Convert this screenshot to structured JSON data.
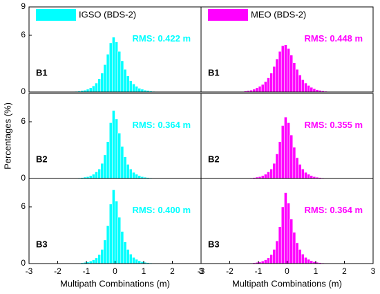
{
  "chart_data": [
    {
      "type": "histogram",
      "series": [
        {
          "name": "IGSO (BDS-2)",
          "color": "#00ffff",
          "values": [
            0.05,
            0.07,
            0.1,
            0.15,
            0.2,
            0.3,
            0.45,
            0.65,
            0.95,
            1.4,
            2.0,
            2.9,
            4.0,
            5.2,
            5.8,
            5.3,
            4.3,
            3.3,
            2.4,
            1.7,
            1.2,
            0.85,
            0.6,
            0.4,
            0.3,
            0.2,
            0.15,
            0.1,
            0.07,
            0.05
          ]
        }
      ],
      "bins": [
        -1.5,
        -1.4,
        -1.3,
        -1.2,
        -1.1,
        -1.0,
        -0.9,
        -0.8,
        -0.7,
        -0.6,
        -0.5,
        -0.4,
        -0.3,
        -0.2,
        -0.1,
        0,
        0.1,
        0.2,
        0.3,
        0.4,
        0.5,
        0.6,
        0.7,
        0.8,
        0.9,
        1.0,
        1.1,
        1.2,
        1.3,
        1.4,
        1.5
      ],
      "label": "B1",
      "annotation": "RMS: 0.422 m",
      "xlim": [
        -3,
        3
      ],
      "ylim": [
        0,
        9
      ],
      "yticks": [
        0,
        6,
        9
      ]
    },
    {
      "type": "histogram",
      "series": [
        {
          "name": "MEO (BDS-2)",
          "color": "#ff00ff",
          "values": [
            0.1,
            0.15,
            0.2,
            0.3,
            0.45,
            0.6,
            0.8,
            1.1,
            1.5,
            2.0,
            2.7,
            3.5,
            4.3,
            4.9,
            5.0,
            4.6,
            3.9,
            3.1,
            2.4,
            1.8,
            1.3,
            0.95,
            0.7,
            0.5,
            0.35,
            0.25,
            0.18,
            0.12,
            0.08,
            0.05
          ]
        }
      ],
      "bins": [
        -1.5,
        -1.4,
        -1.3,
        -1.2,
        -1.1,
        -1.0,
        -0.9,
        -0.8,
        -0.7,
        -0.6,
        -0.5,
        -0.4,
        -0.3,
        -0.2,
        -0.1,
        0,
        0.1,
        0.2,
        0.3,
        0.4,
        0.5,
        0.6,
        0.7,
        0.8,
        0.9,
        1.0,
        1.1,
        1.2,
        1.3,
        1.4,
        1.5
      ],
      "label": "B1",
      "annotation": "RMS: 0.448 m",
      "xlim": [
        -3,
        3
      ],
      "ylim": [
        0,
        9
      ]
    },
    {
      "type": "histogram",
      "color": "#00ffff",
      "values": [
        0.03,
        0.05,
        0.07,
        0.1,
        0.15,
        0.2,
        0.3,
        0.45,
        0.7,
        1.0,
        1.6,
        2.5,
        3.9,
        5.9,
        7.2,
        6.3,
        4.8,
        3.4,
        2.3,
        1.5,
        1.0,
        0.65,
        0.45,
        0.3,
        0.2,
        0.14,
        0.1,
        0.07,
        0.05,
        0.03
      ],
      "bins": [
        -1.5,
        -1.4,
        -1.3,
        -1.2,
        -1.1,
        -1.0,
        -0.9,
        -0.8,
        -0.7,
        -0.6,
        -0.5,
        -0.4,
        -0.3,
        -0.2,
        -0.1,
        0,
        0.1,
        0.2,
        0.3,
        0.4,
        0.5,
        0.6,
        0.7,
        0.8,
        0.9,
        1.0,
        1.1,
        1.2,
        1.3,
        1.4,
        1.5
      ],
      "label": "B2",
      "annotation": "RMS: 0.364 m",
      "y_label": "Percentages (%)",
      "xlim": [
        -3,
        3
      ],
      "ylim": [
        0,
        9
      ],
      "yticks": [
        0,
        6
      ]
    },
    {
      "type": "histogram",
      "color": "#ff00ff",
      "values": [
        0.03,
        0.05,
        0.07,
        0.1,
        0.15,
        0.2,
        0.3,
        0.45,
        0.7,
        1.0,
        1.6,
        2.6,
        3.9,
        5.6,
        6.5,
        5.9,
        4.6,
        3.3,
        2.2,
        1.5,
        1.0,
        0.65,
        0.45,
        0.3,
        0.2,
        0.14,
        0.1,
        0.07,
        0.05,
        0.03
      ],
      "bins": [
        -1.5,
        -1.4,
        -1.3,
        -1.2,
        -1.1,
        -1.0,
        -0.9,
        -0.8,
        -0.7,
        -0.6,
        -0.5,
        -0.4,
        -0.3,
        -0.2,
        -0.1,
        0,
        0.1,
        0.2,
        0.3,
        0.4,
        0.5,
        0.6,
        0.7,
        0.8,
        0.9,
        1.0,
        1.1,
        1.2,
        1.3,
        1.4,
        1.5
      ],
      "label": "B2",
      "annotation": "RMS: 0.355 m",
      "xlim": [
        -3,
        3
      ],
      "ylim": [
        0,
        9
      ]
    },
    {
      "type": "histogram",
      "color": "#00ffff",
      "values": [
        0.03,
        0.04,
        0.06,
        0.09,
        0.13,
        0.18,
        0.27,
        0.4,
        0.6,
        0.95,
        1.5,
        2.5,
        4.0,
        6.3,
        7.8,
        6.6,
        4.9,
        3.4,
        2.3,
        1.5,
        1.0,
        0.65,
        0.45,
        0.3,
        0.2,
        0.14,
        0.1,
        0.07,
        0.05,
        0.03
      ],
      "bins": [
        -1.5,
        -1.4,
        -1.3,
        -1.2,
        -1.1,
        -1.0,
        -0.9,
        -0.8,
        -0.7,
        -0.6,
        -0.5,
        -0.4,
        -0.3,
        -0.2,
        -0.1,
        0,
        0.1,
        0.2,
        0.3,
        0.4,
        0.5,
        0.6,
        0.7,
        0.8,
        0.9,
        1.0,
        1.1,
        1.2,
        1.3,
        1.4,
        1.5
      ],
      "label": "B3",
      "annotation": "RMS: 0.400 m",
      "x_label": "Multipath Combinations (m)",
      "xlim": [
        -3,
        3
      ],
      "xticks": [
        -3,
        -2,
        -1,
        0,
        1,
        2,
        3
      ],
      "ylim": [
        0,
        9
      ],
      "yticks": [
        0,
        6
      ]
    },
    {
      "type": "histogram",
      "color": "#ff00ff",
      "values": [
        0.03,
        0.04,
        0.06,
        0.09,
        0.13,
        0.18,
        0.27,
        0.4,
        0.6,
        0.95,
        1.5,
        2.4,
        3.9,
        6.0,
        7.5,
        6.4,
        4.7,
        3.3,
        2.2,
        1.5,
        1.0,
        0.65,
        0.45,
        0.3,
        0.2,
        0.14,
        0.1,
        0.07,
        0.05,
        0.03
      ],
      "bins": [
        -1.5,
        -1.4,
        -1.3,
        -1.2,
        -1.1,
        -1.0,
        -0.9,
        -0.8,
        -0.7,
        -0.6,
        -0.5,
        -0.4,
        -0.3,
        -0.2,
        -0.1,
        0,
        0.1,
        0.2,
        0.3,
        0.4,
        0.5,
        0.6,
        0.7,
        0.8,
        0.9,
        1.0,
        1.1,
        1.2,
        1.3,
        1.4,
        1.5
      ],
      "label": "B3",
      "annotation": "RMS: 0.364 m",
      "x_label": "Multipath Combinations (m)",
      "xlim": [
        -3,
        3
      ],
      "xticks": [
        -3,
        -2,
        -1,
        0,
        1,
        2,
        3
      ],
      "ylim": [
        0,
        9
      ]
    }
  ]
}
